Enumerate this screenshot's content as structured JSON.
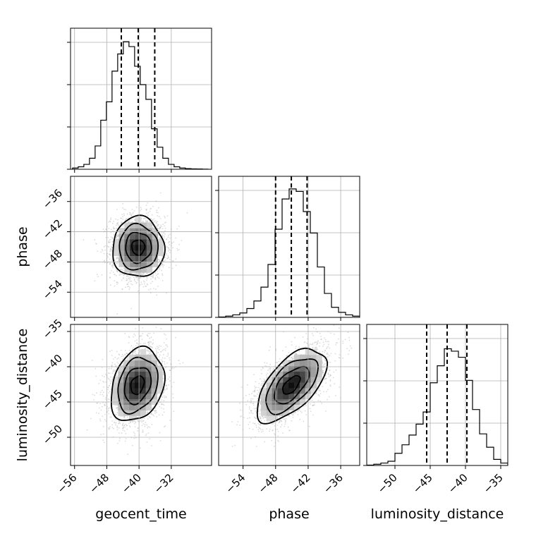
{
  "chart_data": {
    "type": "corner",
    "parameters": [
      "geocent_time",
      "phase",
      "luminosity_distance"
    ],
    "grid": true,
    "quantile_style": "dashed",
    "panels": [
      {
        "id": "hist-geocent_time",
        "type": "histogram",
        "parameter": "geocent_time",
        "xlim": [
          -57,
          -22
        ],
        "bin_width": 1.4,
        "bin_left_edges": [
          -56.5,
          -55.1,
          -53.7,
          -52.3,
          -50.9,
          -49.5,
          -48.1,
          -46.7,
          -45.3,
          -43.9,
          -42.5,
          -41.1,
          -39.7,
          -38.3,
          -36.9,
          -35.5,
          -34.1,
          -32.7,
          -31.3,
          -29.9,
          -28.5,
          -27.1,
          -25.7,
          -24.3
        ],
        "counts": [
          0.01,
          0.02,
          0.04,
          0.09,
          0.19,
          0.4,
          0.55,
          0.8,
          0.94,
          1.04,
          1.0,
          0.84,
          0.69,
          0.57,
          0.33,
          0.18,
          0.09,
          0.04,
          0.02,
          0.01,
          0.005,
          0.003,
          0.002,
          0.001
        ],
        "ylim": [
          0,
          1.15
        ],
        "quantiles": [
          -44.4,
          -40.2,
          -36.1
        ]
      },
      {
        "id": "hist-phase",
        "type": "histogram",
        "parameter": "phase",
        "xlim": [
          -58.5,
          -32.5
        ],
        "bin_width": 1.3,
        "bin_left_edges": [
          -58.5,
          -57.2,
          -55.9,
          -54.6,
          -53.3,
          -52.0,
          -50.7,
          -49.4,
          -48.1,
          -46.8,
          -45.5,
          -44.2,
          -42.9,
          -41.6,
          -40.3,
          -39.0,
          -37.7,
          -36.4,
          -35.1,
          -33.8
        ],
        "counts": [
          0.003,
          0.01,
          0.02,
          0.035,
          0.07,
          0.13,
          0.24,
          0.42,
          0.7,
          0.94,
          1.02,
          1.0,
          0.84,
          0.67,
          0.4,
          0.19,
          0.08,
          0.04,
          0.02,
          0.01
        ],
        "ylim": [
          0,
          1.12
        ],
        "quantiles": [
          -48.0,
          -45.1,
          -42.2
        ]
      },
      {
        "id": "hist-luminosity_distance",
        "type": "histogram",
        "parameter": "luminosity_distance",
        "xlim": [
          -54,
          -34
        ],
        "bin_width": 1.0,
        "bin_left_edges": [
          -54,
          -53,
          -52,
          -51,
          -50,
          -49,
          -48,
          -47,
          -46,
          -45,
          -44,
          -43,
          -42,
          -41,
          -40,
          -39,
          -38,
          -37,
          -36,
          -35
        ],
        "counts": [
          0.003,
          0.01,
          0.02,
          0.035,
          0.1,
          0.17,
          0.25,
          0.34,
          0.44,
          0.68,
          0.82,
          0.96,
          0.94,
          0.89,
          0.7,
          0.46,
          0.26,
          0.15,
          0.05,
          0.02
        ],
        "ylim": [
          0,
          1.16
        ],
        "quantiles": [
          -45.5,
          -42.6,
          -39.8
        ]
      },
      {
        "id": "kde-phase-vs-geocent_time",
        "type": "density2d",
        "x": "geocent_time",
        "y": "phase",
        "xlim": [
          -57,
          -22
        ],
        "ylim": [
          -59,
          -31
        ],
        "mean": [
          -40.2,
          -45.1
        ],
        "sigma": [
          3.2,
          3.0
        ],
        "correlation": 0.0
      },
      {
        "id": "kde-luminosity_distance-vs-geocent_time",
        "type": "density2d",
        "x": "geocent_time",
        "y": "luminosity_distance",
        "xlim": [
          -57,
          -22
        ],
        "ylim": [
          -54,
          -34
        ],
        "mean": [
          -40.4,
          -42.6
        ],
        "sigma": [
          3.3,
          2.6
        ],
        "correlation": 0.25
      },
      {
        "id": "kde-luminosity_distance-vs-phase",
        "type": "density2d",
        "x": "phase",
        "y": "luminosity_distance",
        "xlim": [
          -58.5,
          -32.5
        ],
        "ylim": [
          -54,
          -34
        ],
        "mean": [
          -45.1,
          -42.6
        ],
        "sigma": [
          3.2,
          2.6
        ],
        "correlation": 0.6
      }
    ],
    "ticks": {
      "geocent_time": [
        -56,
        -48,
        -40,
        -32
      ],
      "phase_x": [
        -54,
        -48,
        -42,
        -36
      ],
      "phase_y": [
        -36,
        -42,
        -48,
        -54
      ],
      "luminosity_distance_x": [
        -50,
        -45,
        -40,
        -35
      ],
      "luminosity_distance_y": [
        -35,
        -40,
        -45,
        -50
      ]
    },
    "tick_labels": {
      "geocent_time": [
        "−56",
        "−48",
        "−40",
        "−32"
      ],
      "phase_x": [
        "−54",
        "−48",
        "−42",
        "−36"
      ],
      "phase_y": [
        "−36",
        "−42",
        "−48",
        "−54"
      ],
      "luminosity_distance_x": [
        "−50",
        "−45",
        "−40",
        "−35"
      ],
      "luminosity_distance_y": [
        "−35",
        "−40",
        "−45",
        "−50"
      ]
    },
    "hist_ytick_fractions": [
      0,
      0.3,
      0.6,
      0.9
    ],
    "xlabels": [
      "geocent_time",
      "phase",
      "luminosity_distance"
    ],
    "ylabels": [
      "phase",
      "luminosity_distance"
    ],
    "colors": {
      "line": "#000000",
      "grid": "#b0b0b0",
      "scatter": "#bdbdbd"
    }
  }
}
